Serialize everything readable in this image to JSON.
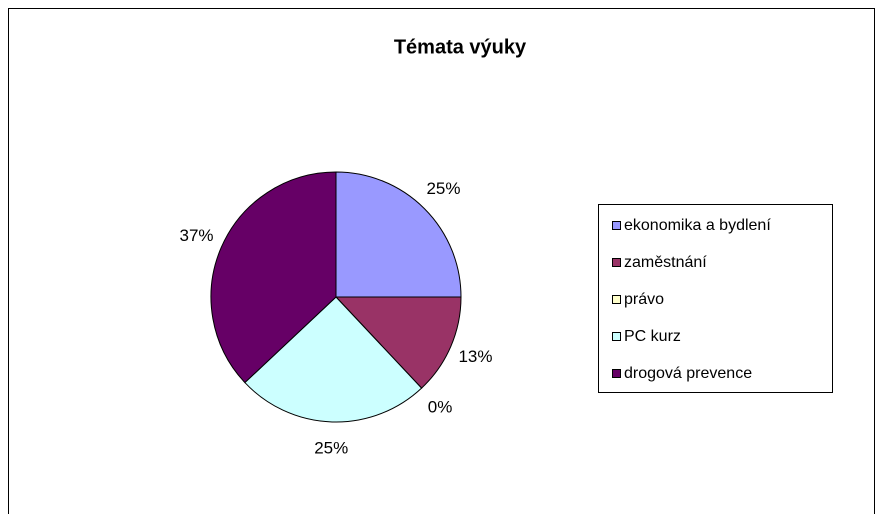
{
  "chart_data": {
    "type": "pie",
    "title": "Témata výuky",
    "categories": [
      "ekonomika a bydlení",
      "zaměstnání",
      "právo",
      "PC kurz",
      "drogová prevence"
    ],
    "values": [
      25,
      13,
      0,
      25,
      37
    ],
    "value_labels": [
      "25%",
      "13%",
      "0%",
      "25%",
      "37%"
    ],
    "colors": [
      "#9999ff",
      "#993366",
      "#ffffcc",
      "#ccffff",
      "#660066"
    ],
    "legend": "right"
  }
}
